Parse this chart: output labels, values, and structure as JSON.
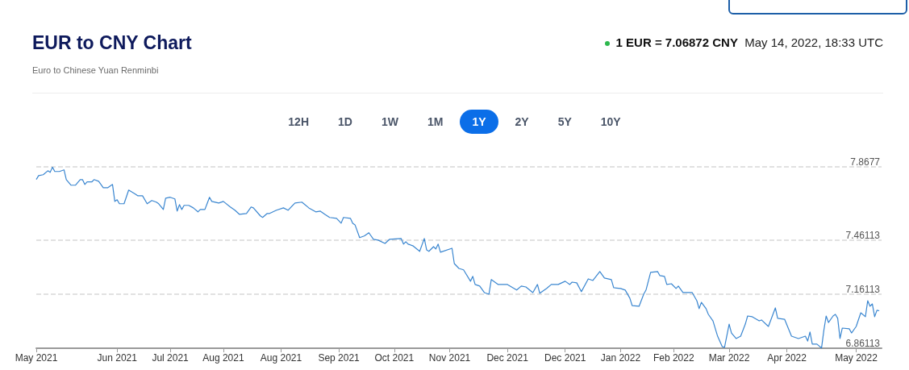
{
  "chart_data": {
    "type": "line",
    "title": "EUR to CNY Chart",
    "subtitle": "Euro to Chinese Yuan Renminbi",
    "annotations": [
      "1 EUR = 7.06872 CNY",
      "May 14, 2022, 18:33 UTC",
      "12H",
      "1D",
      "1W",
      "1M",
      "1Y",
      "2Y",
      "5Y",
      "10Y"
    ],
    "x": [
      "2021-05-14",
      "2021-05-15",
      "2021-05-17",
      "2021-05-19",
      "2021-05-20",
      "2021-05-21",
      "2021-05-22",
      "2021-05-24",
      "2021-05-26",
      "2021-05-27",
      "2021-05-29",
      "2021-05-31",
      "2021-06-02",
      "2021-06-03",
      "2021-06-04",
      "2021-06-05",
      "2021-06-07",
      "2021-06-08",
      "2021-06-10",
      "2021-06-12",
      "2021-06-14",
      "2021-06-16",
      "2021-06-17",
      "2021-06-18",
      "2021-06-19",
      "2021-06-21",
      "2021-06-23",
      "2021-06-26",
      "2021-06-27",
      "2021-06-29",
      "2021-07-01",
      "2021-07-03",
      "2021-07-05",
      "2021-07-06",
      "2021-07-08",
      "2021-07-09",
      "2021-07-11",
      "2021-07-13",
      "2021-07-14",
      "2021-07-15",
      "2021-07-16",
      "2021-07-17",
      "2021-07-19",
      "2021-07-21",
      "2021-07-23",
      "2021-07-24",
      "2021-07-26",
      "2021-07-28",
      "2021-07-29",
      "2021-08-01",
      "2021-08-03",
      "2021-08-06",
      "2021-08-08",
      "2021-08-10",
      "2021-08-13",
      "2021-08-15",
      "2021-08-16",
      "2021-08-19",
      "2021-08-20",
      "2021-08-22",
      "2021-08-23",
      "2021-08-26",
      "2021-08-29",
      "2021-08-31",
      "2021-09-03",
      "2021-09-06",
      "2021-09-09",
      "2021-09-12",
      "2021-09-14",
      "2021-09-16",
      "2021-09-18",
      "2021-09-21",
      "2021-09-23",
      "2021-09-24",
      "2021-09-27",
      "2021-09-28",
      "2021-09-29",
      "2021-10-01",
      "2021-10-03",
      "2021-10-05",
      "2021-10-07",
      "2021-10-09",
      "2021-10-12",
      "2021-10-14",
      "2021-10-19",
      "2021-10-20",
      "2021-10-21",
      "2021-10-22",
      "2021-10-24",
      "2021-10-27",
      "2021-10-29",
      "2021-10-30",
      "2021-10-31",
      "2021-11-02",
      "2021-11-03",
      "2021-11-04",
      "2021-11-05",
      "2021-11-10",
      "2021-11-11",
      "2021-11-13",
      "2021-11-15",
      "2021-11-18",
      "2021-11-19",
      "2021-11-20",
      "2021-11-22",
      "2021-11-24",
      "2021-11-26",
      "2021-11-27",
      "2021-11-30",
      "2021-12-04",
      "2021-12-08",
      "2021-12-10",
      "2021-12-12",
      "2021-12-15",
      "2021-12-17",
      "2021-12-18",
      "2021-12-21",
      "2021-12-23",
      "2021-12-26",
      "2021-12-29",
      "2021-12-31",
      "2022-01-01",
      "2022-01-03",
      "2022-01-05",
      "2022-01-08",
      "2022-01-10",
      "2022-01-13",
      "2022-01-15",
      "2022-01-18",
      "2022-01-19",
      "2022-01-22",
      "2022-01-24",
      "2022-01-26",
      "2022-01-27",
      "2022-01-30",
      "2022-02-01",
      "2022-02-02",
      "2022-02-04",
      "2022-02-07",
      "2022-02-08",
      "2022-02-10",
      "2022-02-11",
      "2022-02-13",
      "2022-02-15",
      "2022-02-16",
      "2022-02-18",
      "2022-02-22",
      "2022-02-24",
      "2022-02-25",
      "2022-02-26",
      "2022-02-28",
      "2022-03-01",
      "2022-03-03",
      "2022-03-05",
      "2022-03-07",
      "2022-03-08",
      "2022-03-10",
      "2022-03-11",
      "2022-03-13",
      "2022-03-15",
      "2022-03-17",
      "2022-03-18",
      "2022-03-20",
      "2022-03-23",
      "2022-03-24",
      "2022-03-27",
      "2022-03-30",
      "2022-03-31",
      "2022-04-03",
      "2022-04-06",
      "2022-04-09",
      "2022-04-12",
      "2022-04-13",
      "2022-04-14",
      "2022-04-15",
      "2022-04-17",
      "2022-04-19",
      "2022-04-20",
      "2022-04-21",
      "2022-04-22",
      "2022-04-24",
      "2022-04-25",
      "2022-04-26",
      "2022-04-27",
      "2022-04-28",
      "2022-05-01",
      "2022-05-02",
      "2022-05-04",
      "2022-05-06",
      "2022-05-08",
      "2022-05-09",
      "2022-05-10",
      "2022-05-11",
      "2022-05-12",
      "2022-05-13",
      "2022-05-14"
    ],
    "series": [
      {
        "color": "#3a86d0",
        "values": [
          7.798,
          7.819,
          7.824,
          7.846,
          7.837,
          7.866,
          7.842,
          7.842,
          7.851,
          7.797,
          7.766,
          7.766,
          7.797,
          7.797,
          7.77,
          7.784,
          7.784,
          7.797,
          7.788,
          7.752,
          7.752,
          7.77,
          7.676,
          7.685,
          7.663,
          7.663,
          7.739,
          7.716,
          7.707,
          7.707,
          7.663,
          7.681,
          7.672,
          7.663,
          7.631,
          7.694,
          7.699,
          7.69,
          7.622,
          7.658,
          7.631,
          7.654,
          7.654,
          7.64,
          7.618,
          7.631,
          7.631,
          7.699,
          7.676,
          7.667,
          7.676,
          7.645,
          7.627,
          7.604,
          7.609,
          7.645,
          7.64,
          7.596,
          7.587,
          7.609,
          7.609,
          7.627,
          7.64,
          7.627,
          7.667,
          7.672,
          7.64,
          7.618,
          7.622,
          7.604,
          7.587,
          7.582,
          7.555,
          7.587,
          7.582,
          7.555,
          7.546,
          7.475,
          7.484,
          7.502,
          7.466,
          7.461,
          7.443,
          7.466,
          7.47,
          7.439,
          7.452,
          7.439,
          7.43,
          7.399,
          7.47,
          7.407,
          7.399,
          7.425,
          7.412,
          7.439,
          7.394,
          7.416,
          7.331,
          7.304,
          7.296,
          7.233,
          7.26,
          7.215,
          7.206,
          7.17,
          7.161,
          7.242,
          7.215,
          7.215,
          7.184,
          7.206,
          7.201,
          7.17,
          7.215,
          7.166,
          7.193,
          7.215,
          7.215,
          7.233,
          7.215,
          7.228,
          7.224,
          7.175,
          7.246,
          7.237,
          7.287,
          7.251,
          7.242,
          7.197,
          7.193,
          7.184,
          7.139,
          7.098,
          7.094,
          7.161,
          7.184,
          7.282,
          7.287,
          7.264,
          7.26,
          7.215,
          7.219,
          7.193,
          7.206,
          7.17,
          7.17,
          7.125,
          7.081,
          7.116,
          7.081,
          7.049,
          7.013,
          6.928,
          6.87,
          6.866,
          6.995,
          6.946,
          6.915,
          6.928,
          6.995,
          7.04,
          7.036,
          7.013,
          7.018,
          6.982,
          7.085,
          7.027,
          7.022,
          6.928,
          6.915,
          6.928,
          6.901,
          6.951,
          6.884,
          6.884,
          6.862,
          6.96,
          7.04,
          7.004,
          7.04,
          7.049,
          7.027,
          6.915,
          6.973,
          6.969,
          6.946,
          6.982,
          7.058,
          7.036,
          7.125,
          7.094,
          7.107,
          7.036,
          7.072,
          7.069
        ]
      }
    ],
    "xlim": [
      "2021-05-14",
      "2022-05-15"
    ],
    "xticks": [
      {
        "value": "2021-05-14",
        "label": "May 2021"
      },
      {
        "value": "2021-06-18",
        "label": "Jun 2021"
      },
      {
        "value": "2021-07-11",
        "label": "Jul 2021"
      },
      {
        "value": "2021-08-03",
        "label": "Aug 2021"
      },
      {
        "value": "2021-08-28",
        "label": "Aug 2021"
      },
      {
        "value": "2021-09-22",
        "label": "Sep 2021"
      },
      {
        "value": "2021-10-16",
        "label": "Oct 2021"
      },
      {
        "value": "2021-11-09",
        "label": "Nov 2021"
      },
      {
        "value": "2021-12-04",
        "label": "Dec 2021"
      },
      {
        "value": "2021-12-29",
        "label": "Dec 2021"
      },
      {
        "value": "2022-01-22",
        "label": "Jan 2022"
      },
      {
        "value": "2022-02-14",
        "label": "Feb 2022"
      },
      {
        "value": "2022-03-10",
        "label": "Mar 2022"
      },
      {
        "value": "2022-04-04",
        "label": "Apr 2022"
      },
      {
        "value": "2022-05-04",
        "label": "May 2022"
      }
    ],
    "ylim": [
      6.86113,
      7.8677
    ],
    "yticks": [
      6.86113,
      7.16113,
      7.46113,
      7.8677
    ],
    "grid": "y",
    "marker": "none",
    "line_style": "solid"
  }
}
